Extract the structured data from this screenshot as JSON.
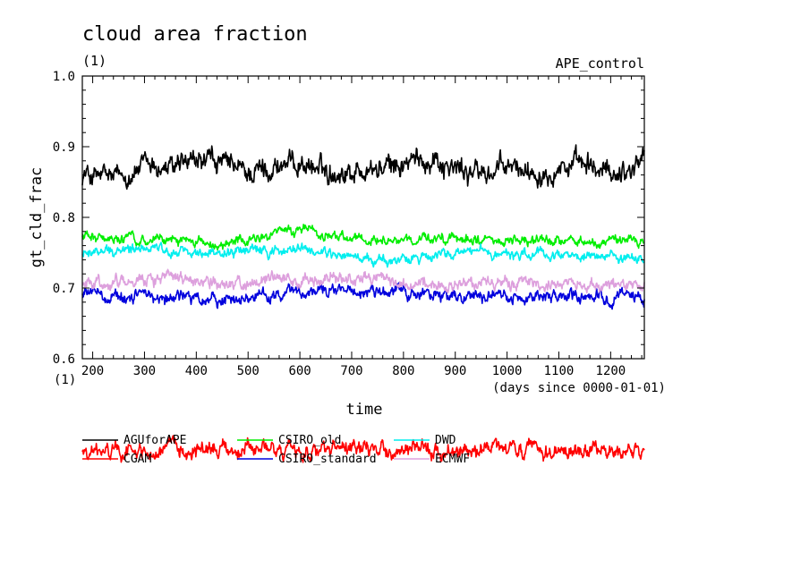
{
  "chart_data": {
    "type": "line",
    "title": "cloud area fraction",
    "title_units": "(1)",
    "experiment": "APE_control",
    "ylabel": "gt_cld_frac",
    "yunits": "(1)",
    "xlabel": "time",
    "xunits": "(days since 0000-01-01)",
    "xlim": [
      180,
      1265
    ],
    "ylim": [
      0.6,
      1.0
    ],
    "xticks": [
      200,
      300,
      400,
      500,
      600,
      700,
      800,
      900,
      1000,
      1100,
      1200
    ],
    "yticks": [
      0.6,
      0.7,
      0.8,
      0.9,
      1.0
    ],
    "xtick_labels": [
      "200",
      "300",
      "400",
      "500",
      "600",
      "700",
      "800",
      "900",
      "1000",
      "1100",
      "1200"
    ],
    "ytick_labels": [
      "0.6",
      "0.7",
      "0.8",
      "0.9",
      "1.0"
    ],
    "grid": false,
    "legend_position": "bottom",
    "series": [
      {
        "name": "AGUforAPE",
        "color": "#000000",
        "mean": 0.87,
        "amp": 0.018,
        "anchors": [
          [
            180,
            0.86
          ],
          [
            250,
            0.855
          ],
          [
            300,
            0.872
          ],
          [
            350,
            0.868
          ],
          [
            430,
            0.88
          ],
          [
            500,
            0.862
          ],
          [
            550,
            0.872
          ],
          [
            600,
            0.878
          ],
          [
            650,
            0.865
          ],
          [
            700,
            0.866
          ],
          [
            760,
            0.868
          ],
          [
            800,
            0.875
          ],
          [
            860,
            0.885
          ],
          [
            900,
            0.868
          ],
          [
            960,
            0.862
          ],
          [
            1000,
            0.87
          ],
          [
            1060,
            0.866
          ],
          [
            1100,
            0.875
          ],
          [
            1150,
            0.87
          ],
          [
            1200,
            0.862
          ],
          [
            1240,
            0.87
          ],
          [
            1265,
            0.89
          ]
        ]
      },
      {
        "name": "CGAM",
        "color": "#ff0000",
        "mean": 0.47,
        "amp": 0.012,
        "anchors": [
          [
            180,
            0.468
          ],
          [
            300,
            0.47
          ],
          [
            500,
            0.472
          ],
          [
            700,
            0.469
          ],
          [
            900,
            0.471
          ],
          [
            1100,
            0.47
          ],
          [
            1265,
            0.468
          ]
        ]
      },
      {
        "name": "CSIRO_old",
        "color": "#00ee00",
        "mean": 0.768,
        "amp": 0.008,
        "anchors": [
          [
            180,
            0.772
          ],
          [
            300,
            0.77
          ],
          [
            400,
            0.766
          ],
          [
            450,
            0.762
          ],
          [
            550,
            0.776
          ],
          [
            600,
            0.782
          ],
          [
            700,
            0.768
          ],
          [
            800,
            0.765
          ],
          [
            900,
            0.77
          ],
          [
            1000,
            0.767
          ],
          [
            1100,
            0.766
          ],
          [
            1265,
            0.765
          ]
        ]
      },
      {
        "name": "CSIRO_standard",
        "color": "#0000dd",
        "mean": 0.69,
        "amp": 0.01,
        "anchors": [
          [
            180,
            0.692
          ],
          [
            300,
            0.688
          ],
          [
            450,
            0.684
          ],
          [
            550,
            0.69
          ],
          [
            700,
            0.697
          ],
          [
            800,
            0.693
          ],
          [
            900,
            0.688
          ],
          [
            1000,
            0.69
          ],
          [
            1100,
            0.688
          ],
          [
            1200,
            0.686
          ],
          [
            1265,
            0.688
          ]
        ]
      },
      {
        "name": "DWD",
        "color": "#00eeee",
        "mean": 0.748,
        "amp": 0.008,
        "anchors": [
          [
            180,
            0.748
          ],
          [
            300,
            0.755
          ],
          [
            400,
            0.75
          ],
          [
            500,
            0.752
          ],
          [
            600,
            0.755
          ],
          [
            700,
            0.742
          ],
          [
            780,
            0.735
          ],
          [
            850,
            0.745
          ],
          [
            950,
            0.752
          ],
          [
            1050,
            0.748
          ],
          [
            1150,
            0.745
          ],
          [
            1265,
            0.74
          ]
        ]
      },
      {
        "name": "ECMWF",
        "color": "#dda0dd",
        "mean": 0.708,
        "amp": 0.01,
        "anchors": [
          [
            180,
            0.704
          ],
          [
            280,
            0.712
          ],
          [
            350,
            0.715
          ],
          [
            450,
            0.705
          ],
          [
            550,
            0.71
          ],
          [
            650,
            0.712
          ],
          [
            750,
            0.715
          ],
          [
            850,
            0.706
          ],
          [
            950,
            0.705
          ],
          [
            1050,
            0.708
          ],
          [
            1150,
            0.705
          ],
          [
            1265,
            0.7
          ]
        ]
      }
    ]
  }
}
